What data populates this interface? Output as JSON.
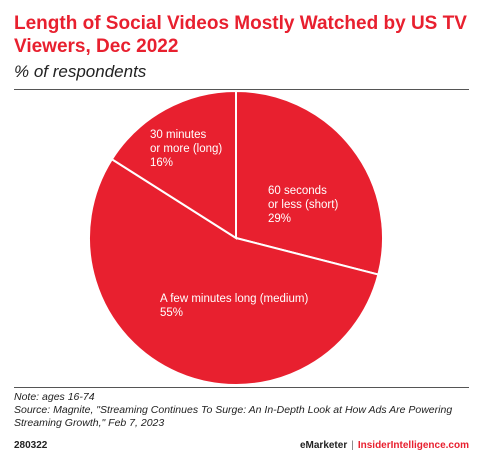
{
  "header": {
    "title": "Length of Social Videos Mostly Watched by US TV Viewers, Dec 2022",
    "subtitle": "% of respondents"
  },
  "chart_data": {
    "type": "pie",
    "title": "Length of Social Videos Mostly Watched by US TV Viewers, Dec 2022",
    "subtitle": "% of respondents",
    "slices": [
      {
        "label_lines": [
          "60 seconds",
          "or less (short)"
        ],
        "value": 29,
        "value_label": "29%"
      },
      {
        "label_lines": [
          "A few minutes long (medium)"
        ],
        "value": 55,
        "value_label": "55%"
      },
      {
        "label_lines": [
          "30 minutes",
          "or more (long)"
        ],
        "value": 16,
        "value_label": "16%"
      }
    ],
    "color": "#e8202f",
    "edge_color": "#ffffff"
  },
  "footer": {
    "note": "Note: ages 16-74",
    "source": "Source: Magnite, \"Streaming Continues To Surge: An In-Depth Look at How Ads Are Powering Streaming Growth,\" Feb 7, 2023",
    "id": "280322",
    "brand": "eMarketer",
    "separator": "|",
    "brand_site": "InsiderIntelligence.com"
  }
}
